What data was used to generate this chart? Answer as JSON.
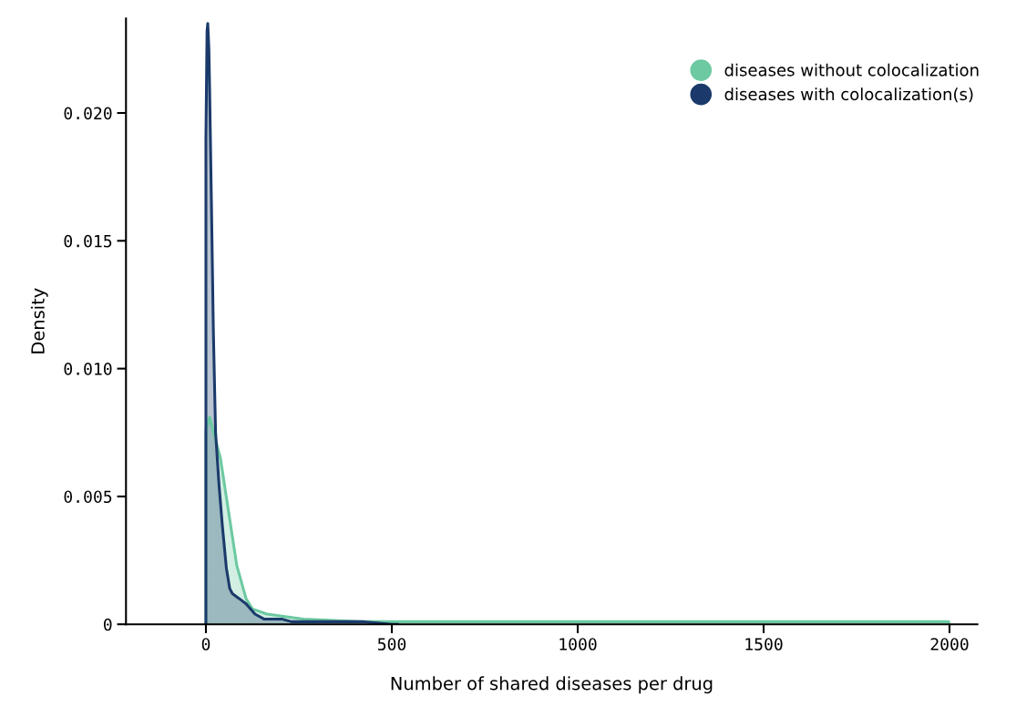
{
  "chart_data": {
    "type": "area",
    "xlabel": "Number of shared diseases per drug",
    "ylabel": "Density",
    "xlim": [
      -215,
      2075
    ],
    "xticks": [
      0,
      500,
      1000,
      1500,
      2000
    ],
    "ylim": [
      0,
      0.0237
    ],
    "yticks": [
      0,
      0.005,
      {
        "value": 0.01,
        "label": "0.010"
      },
      0.015,
      {
        "value": 0.02,
        "label": "0.020"
      }
    ],
    "grid": false,
    "legend": "top right",
    "series": [
      {
        "name": "diseases without colocalization",
        "color": "#6cc9a1",
        "x": [
          0,
          0,
          10,
          39,
          61,
          83,
          108,
          125,
          164,
          262,
          426,
          600,
          700,
          900,
          1200,
          1500,
          1800,
          1998,
          1998
        ],
        "values": [
          0,
          0.0076,
          0.0081,
          0.0065,
          0.0044,
          0.0023,
          0.001,
          0.0006,
          0.0004,
          0.0002,
          0.0001,
          0.0001,
          0.0001,
          0.0001,
          0.0001,
          0.0001,
          0.0001,
          0.0001,
          0
        ]
      },
      {
        "name": "diseases with colocalization(s)",
        "color": "#1b3a6b",
        "x": [
          0,
          0,
          3,
          5,
          8,
          10,
          15,
          20,
          26,
          35,
          44,
          55,
          64,
          71,
          90,
          108,
          132,
          157,
          206,
          230,
          426,
          500,
          515
        ],
        "values": [
          0,
          0.019,
          0.0232,
          0.0235,
          0.0225,
          0.0209,
          0.0163,
          0.0115,
          0.0075,
          0.0055,
          0.0039,
          0.0022,
          0.0014,
          0.0012,
          0.001,
          0.0008,
          0.0004,
          0.0002,
          0.0002,
          0.0001,
          0.0001,
          0,
          0
        ]
      }
    ]
  }
}
